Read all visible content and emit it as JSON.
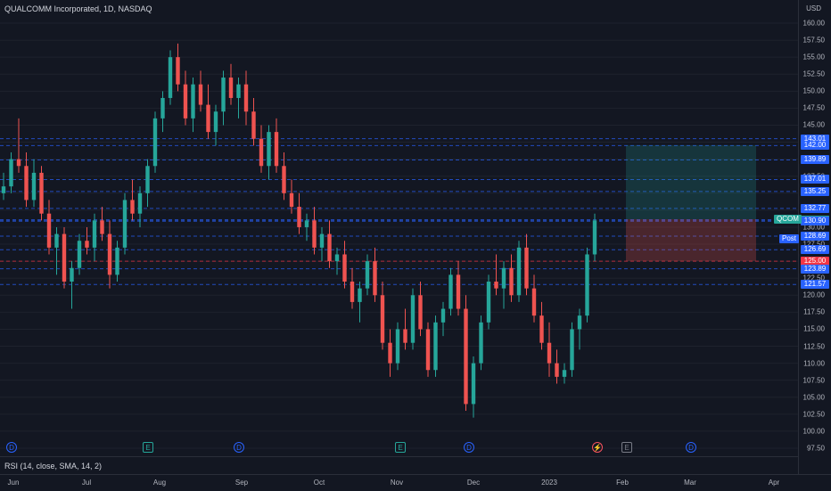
{
  "header": {
    "title": "QUALCOMM Incorporated, 1D, NASDAQ"
  },
  "indicator": {
    "label": "RSI (14, close, SMA, 14, 2)"
  },
  "price_axis": {
    "currency": "USD",
    "ticks": [
      "160.00",
      "157.50",
      "155.00",
      "152.50",
      "150.00",
      "147.50",
      "145.00",
      "142.50",
      "140.00",
      "137.50",
      "135.00",
      "132.50",
      "130.00",
      "127.50",
      "125.00",
      "122.50",
      "120.00",
      "117.50",
      "115.00",
      "112.50",
      "110.00",
      "107.50",
      "105.00",
      "102.50",
      "100.00",
      "97.50"
    ]
  },
  "price_levels": [
    {
      "label": "143.01",
      "color": "#2962ff"
    },
    {
      "label": "142.00",
      "color": "#2962ff"
    },
    {
      "label": "139.89",
      "color": "#2962ff"
    },
    {
      "label": "137.01",
      "color": "#2962ff"
    },
    {
      "label": "135.25",
      "color": "#2962ff"
    },
    {
      "label": "132.77",
      "color": "#2962ff"
    },
    {
      "label": "131.09",
      "color": "#2962ff"
    },
    {
      "label": "131.03",
      "color": "#26a69a"
    },
    {
      "label": "130.93",
      "color": "#2962ff"
    },
    {
      "label": "130.90",
      "color": "#2962ff"
    },
    {
      "label": "128.69",
      "color": "#2962ff"
    },
    {
      "label": "126.69",
      "color": "#2962ff"
    },
    {
      "label": "125.00",
      "color": "#f23645"
    },
    {
      "label": "123.89",
      "color": "#2962ff"
    },
    {
      "label": "121.57",
      "color": "#2962ff"
    }
  ],
  "tags": {
    "symbol": "QCOM",
    "post": "Post"
  },
  "time_axis": {
    "months": [
      "Jun",
      "Jul",
      "Aug",
      "Sep",
      "Oct",
      "Nov",
      "Dec",
      "2023",
      "Feb",
      "Mar",
      "Apr"
    ]
  },
  "events": [
    "D",
    "E",
    "D",
    "E",
    "D",
    "⚡",
    "E",
    "D"
  ],
  "colors": {
    "up": "#26a69a",
    "down": "#ef5350",
    "grid": "#2a2e39",
    "level_line": "#2962ff"
  },
  "chart_data": {
    "type": "candlestick",
    "ylim": [
      97.5,
      160
    ],
    "candles": [
      [
        135,
        138,
        134,
        136
      ],
      [
        136,
        141,
        135,
        140
      ],
      [
        140,
        146,
        138,
        139
      ],
      [
        139,
        141,
        133,
        134
      ],
      [
        134,
        140,
        133,
        138
      ],
      [
        138,
        139,
        131,
        132
      ],
      [
        132,
        134,
        126,
        127
      ],
      [
        127,
        130,
        123,
        129
      ],
      [
        129,
        130,
        121,
        122
      ],
      [
        122,
        125,
        118,
        124
      ],
      [
        124,
        129,
        123,
        128
      ],
      [
        128,
        130,
        126,
        127
      ],
      [
        127,
        132,
        125,
        131
      ],
      [
        131,
        133,
        128,
        129
      ],
      [
        129,
        131,
        121,
        123
      ],
      [
        123,
        128,
        122,
        127
      ],
      [
        127,
        135,
        126,
        134
      ],
      [
        134,
        137,
        131,
        132
      ],
      [
        132,
        136,
        130,
        135
      ],
      [
        135,
        140,
        133,
        139
      ],
      [
        139,
        147,
        138,
        146
      ],
      [
        146,
        150,
        144,
        149
      ],
      [
        149,
        156,
        148,
        155
      ],
      [
        155,
        157,
        150,
        151
      ],
      [
        151,
        153,
        145,
        146
      ],
      [
        146,
        152,
        144,
        151
      ],
      [
        151,
        153,
        147,
        148
      ],
      [
        148,
        151,
        143,
        144
      ],
      [
        144,
        148,
        142,
        147
      ],
      [
        147,
        153,
        145,
        152
      ],
      [
        152,
        154,
        148,
        149
      ],
      [
        149,
        152,
        146,
        151
      ],
      [
        151,
        153,
        145,
        147
      ],
      [
        147,
        149,
        142,
        143
      ],
      [
        143,
        145,
        138,
        139
      ],
      [
        139,
        145,
        137,
        144
      ],
      [
        144,
        146,
        138,
        139
      ],
      [
        139,
        141,
        134,
        135
      ],
      [
        135,
        137,
        132,
        133
      ],
      [
        133,
        135,
        129,
        130
      ],
      [
        130,
        132,
        128,
        131
      ],
      [
        131,
        133,
        126,
        127
      ],
      [
        127,
        130,
        125,
        129
      ],
      [
        129,
        131,
        124,
        125
      ],
      [
        125,
        127,
        123,
        126
      ],
      [
        126,
        128,
        121,
        122
      ],
      [
        122,
        124,
        118,
        119
      ],
      [
        119,
        122,
        116,
        121
      ],
      [
        121,
        126,
        120,
        125
      ],
      [
        125,
        127,
        119,
        120
      ],
      [
        120,
        122,
        112,
        113
      ],
      [
        113,
        115,
        108,
        110
      ],
      [
        110,
        116,
        109,
        115
      ],
      [
        115,
        118,
        112,
        113
      ],
      [
        113,
        121,
        112,
        120
      ],
      [
        120,
        122,
        114,
        115
      ],
      [
        115,
        116,
        108,
        109
      ],
      [
        109,
        117,
        108,
        116
      ],
      [
        116,
        119,
        114,
        118
      ],
      [
        118,
        124,
        117,
        123
      ],
      [
        123,
        125,
        117,
        118
      ],
      [
        118,
        120,
        103,
        104
      ],
      [
        104,
        111,
        102,
        110
      ],
      [
        110,
        117,
        109,
        116
      ],
      [
        116,
        123,
        115,
        122
      ],
      [
        122,
        126,
        120,
        121
      ],
      [
        121,
        125,
        118,
        124
      ],
      [
        124,
        126,
        119,
        120
      ],
      [
        120,
        128,
        119,
        127
      ],
      [
        127,
        129,
        120,
        121
      ],
      [
        121,
        123,
        116,
        117
      ],
      [
        117,
        119,
        112,
        113
      ],
      [
        113,
        116,
        108,
        110
      ],
      [
        110,
        112,
        107,
        108
      ],
      [
        108,
        110,
        107,
        109
      ],
      [
        109,
        116,
        108,
        115
      ],
      [
        115,
        118,
        112,
        117
      ],
      [
        117,
        127,
        116,
        126
      ],
      [
        126,
        132,
        125,
        131
      ]
    ]
  }
}
